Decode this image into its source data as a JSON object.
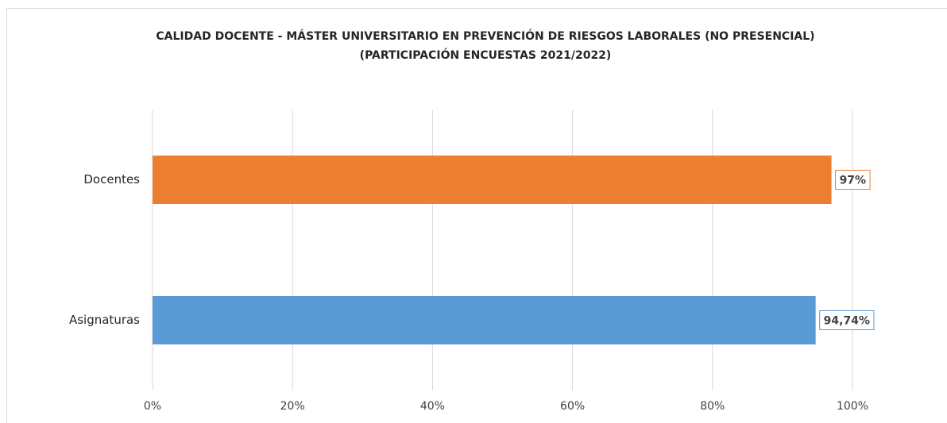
{
  "chart_data": {
    "type": "hbar",
    "title": "CALIDAD DOCENTE - MÁSTER UNIVERSITARIO EN PREVENCIÓN DE RIESGOS LABORALES (NO PRESENCIAL)",
    "subtitle": "(PARTICIPACIÓN ENCUESTAS 2021/2022)",
    "categories": [
      "Docentes",
      "Asignaturas"
    ],
    "values": [
      97,
      94.74
    ],
    "value_labels": [
      "97%",
      "94,74%"
    ],
    "colors": [
      "#ed7d31",
      "#5b9bd5"
    ],
    "xlim": [
      0,
      100
    ],
    "xticks": [
      {
        "value": 0,
        "label": "0%"
      },
      {
        "value": 20,
        "label": "20%"
      },
      {
        "value": 40,
        "label": "40%"
      },
      {
        "value": 60,
        "label": "60%"
      },
      {
        "value": 80,
        "label": "80%"
      },
      {
        "value": 100,
        "label": "100%"
      }
    ],
    "grid": true
  }
}
